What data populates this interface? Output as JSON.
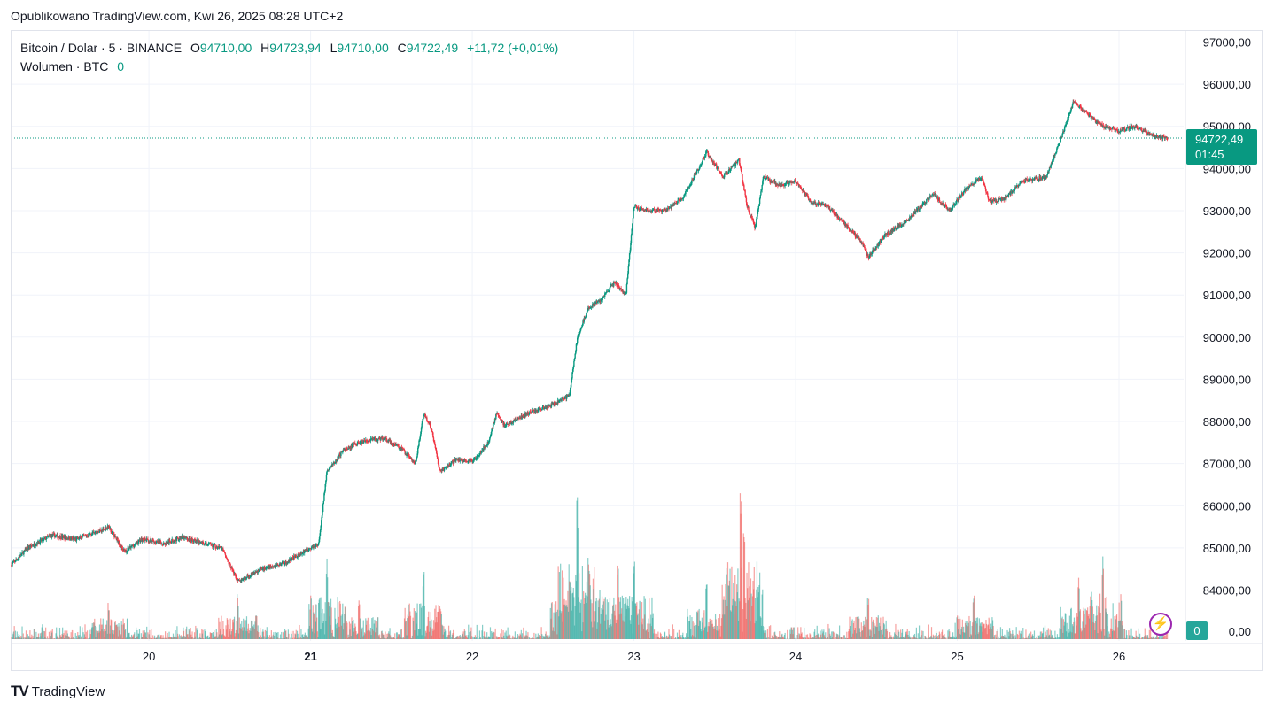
{
  "header": {
    "published": "Opublikowano TradingView.com, Kwi 26, 2025 08:28 UTC+2"
  },
  "legend": {
    "symbol": "Bitcoin / Dolar · 5 · BINANCE",
    "o_label": "O",
    "o_value": "94710,00",
    "h_label": "H",
    "h_value": "94723,94",
    "l_label": "L",
    "l_value": "94710,00",
    "c_label": "C",
    "c_value": "94722,49",
    "change": "+11,72 (+0,01%)",
    "volume_label": "Wolumen · BTC",
    "volume_value": "0"
  },
  "price_tag": {
    "price": "94722,49",
    "countdown": "01:45"
  },
  "volume_tag": {
    "value": "0"
  },
  "bolt_icon": "lightning-icon",
  "footer": {
    "brand": "TradingView",
    "logo_icon": "tradingview-logo-icon"
  },
  "colors": {
    "up": "#089981",
    "down": "#f23645",
    "vol_up": "#26a69a",
    "vol_down": "#ef5350",
    "grid": "#f0f3fa",
    "accent": "#9c27b0"
  },
  "chart_data": {
    "type": "candlestick",
    "title": "Bitcoin / Dolar · 5 · BINANCE",
    "x_tick_labels": [
      "20",
      "21",
      "22",
      "23",
      "24",
      "25",
      "26"
    ],
    "x_tick_days": [
      20,
      21,
      22,
      23,
      24,
      25,
      26
    ],
    "bold_ticks": [
      "21"
    ],
    "x_range_days": [
      19.15,
      26.4
    ],
    "y_tick_labels": [
      "97000,00",
      "96000,00",
      "95000,00",
      "94000,00",
      "93000,00",
      "92000,00",
      "91000,00",
      "90000,00",
      "89000,00",
      "88000,00",
      "87000,00",
      "86000,00",
      "85000,00",
      "84000,00",
      "0,00"
    ],
    "y_tick_values": [
      97000,
      96000,
      95000,
      94000,
      93000,
      92000,
      91000,
      90000,
      89000,
      88000,
      87000,
      86000,
      85000,
      84000
    ],
    "ylim": [
      83000,
      97800
    ],
    "last_price": 94722.49,
    "price_path": [
      [
        19.15,
        84600
      ],
      [
        19.25,
        85000
      ],
      [
        19.4,
        85300
      ],
      [
        19.55,
        85200
      ],
      [
        19.7,
        85400
      ],
      [
        19.75,
        85500
      ],
      [
        19.85,
        84900
      ],
      [
        19.95,
        85200
      ],
      [
        20.1,
        85100
      ],
      [
        20.2,
        85250
      ],
      [
        20.35,
        85100
      ],
      [
        20.45,
        85000
      ],
      [
        20.5,
        84600
      ],
      [
        20.55,
        84200
      ],
      [
        20.6,
        84300
      ],
      [
        20.7,
        84500
      ],
      [
        20.85,
        84650
      ],
      [
        20.95,
        84900
      ],
      [
        21.05,
        85100
      ],
      [
        21.1,
        86800
      ],
      [
        21.2,
        87300
      ],
      [
        21.3,
        87500
      ],
      [
        21.45,
        87600
      ],
      [
        21.55,
        87400
      ],
      [
        21.65,
        87000
      ],
      [
        21.7,
        88200
      ],
      [
        21.75,
        87800
      ],
      [
        21.8,
        86800
      ],
      [
        21.9,
        87100
      ],
      [
        22.0,
        87050
      ],
      [
        22.1,
        87500
      ],
      [
        22.15,
        88200
      ],
      [
        22.2,
        87900
      ],
      [
        22.35,
        88200
      ],
      [
        22.5,
        88400
      ],
      [
        22.6,
        88600
      ],
      [
        22.65,
        90000
      ],
      [
        22.72,
        90700
      ],
      [
        22.8,
        90900
      ],
      [
        22.88,
        91300
      ],
      [
        22.95,
        91000
      ],
      [
        23.0,
        93100
      ],
      [
        23.1,
        93000
      ],
      [
        23.2,
        93000
      ],
      [
        23.3,
        93300
      ],
      [
        23.4,
        94000
      ],
      [
        23.45,
        94400
      ],
      [
        23.55,
        93800
      ],
      [
        23.65,
        94200
      ],
      [
        23.7,
        93100
      ],
      [
        23.75,
        92600
      ],
      [
        23.8,
        93800
      ],
      [
        23.9,
        93600
      ],
      [
        24.0,
        93700
      ],
      [
        24.1,
        93200
      ],
      [
        24.2,
        93100
      ],
      [
        24.3,
        92700
      ],
      [
        24.4,
        92300
      ],
      [
        24.45,
        91900
      ],
      [
        24.55,
        92400
      ],
      [
        24.7,
        92800
      ],
      [
        24.85,
        93400
      ],
      [
        24.95,
        93000
      ],
      [
        25.05,
        93500
      ],
      [
        25.15,
        93800
      ],
      [
        25.2,
        93200
      ],
      [
        25.3,
        93300
      ],
      [
        25.4,
        93700
      ],
      [
        25.55,
        93800
      ],
      [
        25.65,
        94800
      ],
      [
        25.72,
        95600
      ],
      [
        25.8,
        95300
      ],
      [
        25.9,
        95000
      ],
      [
        26.0,
        94900
      ],
      [
        26.1,
        95000
      ],
      [
        26.2,
        94800
      ],
      [
        26.3,
        94722
      ]
    ],
    "volume_spikes": [
      [
        22.65,
        1.0
      ],
      [
        22.72,
        0.62
      ],
      [
        22.9,
        0.55
      ],
      [
        23.0,
        0.55
      ],
      [
        23.66,
        0.98
      ],
      [
        23.68,
        0.72
      ],
      [
        21.1,
        0.55
      ],
      [
        21.7,
        0.45
      ],
      [
        22.6,
        0.5
      ],
      [
        25.9,
        0.6
      ],
      [
        25.75,
        0.42
      ],
      [
        24.45,
        0.3
      ],
      [
        20.55,
        0.3
      ],
      [
        19.75,
        0.27
      ],
      [
        23.45,
        0.38
      ],
      [
        25.1,
        0.3
      ],
      [
        21.3,
        0.28
      ]
    ],
    "volume_max_btc": 110
  }
}
